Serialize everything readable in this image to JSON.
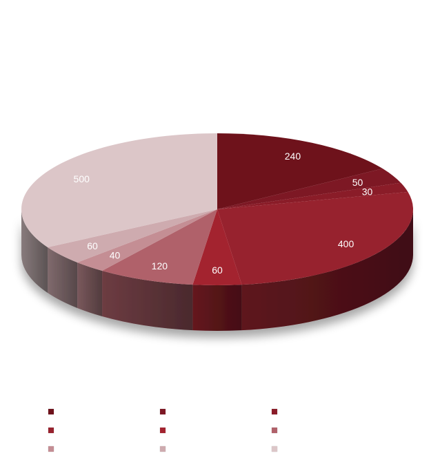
{
  "chart_data": {
    "type": "pie",
    "title": "",
    "style": "3d",
    "start_angle": "12 o'clock",
    "direction": "clockwise",
    "slices": [
      {
        "value": 240,
        "label": "240",
        "color": "#6e121b",
        "legend": ""
      },
      {
        "value": 50,
        "label": "50",
        "color": "#7d1824",
        "legend": ""
      },
      {
        "value": 30,
        "label": "30",
        "color": "#8a1c28",
        "legend": ""
      },
      {
        "value": 400,
        "label": "400",
        "color": "#97222e",
        "legend": ""
      },
      {
        "value": 60,
        "label": "60",
        "color": "#a3232f",
        "legend": ""
      },
      {
        "value": 120,
        "label": "120",
        "color": "#b0616a",
        "legend": ""
      },
      {
        "value": 40,
        "label": "40",
        "color": "#c48e94",
        "legend": ""
      },
      {
        "value": 60,
        "label": "60",
        "color": "#ceabaf",
        "legend": ""
      },
      {
        "value": 500,
        "label": "500",
        "color": "#dcc6c8",
        "legend": ""
      }
    ],
    "legend_position": "bottom"
  }
}
